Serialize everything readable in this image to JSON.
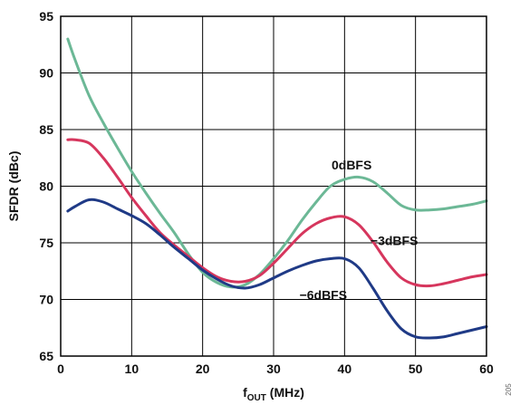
{
  "chart_data": {
    "type": "line",
    "xlabel_main": "f",
    "xlabel_sub": "OUT",
    "xlabel_unit": " (MHz)",
    "ylabel": "SFDR (dBc)",
    "xlim": [
      0,
      60
    ],
    "ylim": [
      65,
      95
    ],
    "xticks": [
      0,
      10,
      20,
      30,
      40,
      50,
      60
    ],
    "yticks": [
      65,
      70,
      75,
      80,
      85,
      90,
      95
    ],
    "grid": true,
    "side_code": "205",
    "series": [
      {
        "name": "0dBFS",
        "color": "#6cb896",
        "x": [
          1,
          2,
          4,
          6,
          8,
          10,
          12,
          14,
          16,
          18,
          20,
          22,
          24,
          26,
          28,
          30,
          32,
          34,
          36,
          38,
          40,
          42,
          44,
          46,
          48,
          50,
          52,
          54,
          56,
          58,
          60
        ],
        "y": [
          93.0,
          91.2,
          88.0,
          85.6,
          83.4,
          81.3,
          79.4,
          77.6,
          75.9,
          74.0,
          72.4,
          71.5,
          71.1,
          71.3,
          72.2,
          73.6,
          75.2,
          77.0,
          78.6,
          80.0,
          80.6,
          80.8,
          80.4,
          79.4,
          78.3,
          77.9,
          77.9,
          78.0,
          78.2,
          78.4,
          78.7
        ]
      },
      {
        "name": "−3dBFS",
        "color": "#d6365d",
        "x": [
          1,
          2,
          4,
          6,
          8,
          10,
          12,
          14,
          16,
          18,
          20,
          22,
          24,
          26,
          28,
          30,
          32,
          34,
          36,
          38,
          40,
          42,
          44,
          46,
          48,
          50,
          52,
          54,
          56,
          58,
          60
        ],
        "y": [
          84.1,
          84.1,
          83.8,
          82.5,
          80.8,
          79.0,
          77.4,
          75.9,
          74.8,
          73.8,
          72.8,
          72.0,
          71.6,
          71.6,
          72.1,
          73.2,
          74.5,
          75.8,
          76.7,
          77.2,
          77.3,
          76.6,
          75.1,
          73.3,
          71.9,
          71.3,
          71.2,
          71.4,
          71.7,
          72.0,
          72.2
        ]
      },
      {
        "name": "−6dBFS",
        "color": "#1f3a86",
        "x": [
          1,
          2,
          4,
          6,
          8,
          10,
          12,
          14,
          16,
          18,
          20,
          22,
          24,
          26,
          28,
          30,
          32,
          34,
          36,
          38,
          40,
          42,
          44,
          46,
          48,
          50,
          52,
          54,
          56,
          58,
          60
        ],
        "y": [
          77.8,
          78.2,
          78.8,
          78.6,
          78.0,
          77.4,
          76.7,
          75.7,
          74.6,
          73.6,
          72.6,
          71.8,
          71.2,
          71.0,
          71.3,
          71.9,
          72.5,
          73.0,
          73.4,
          73.6,
          73.6,
          72.8,
          71.0,
          69.0,
          67.4,
          66.7,
          66.6,
          66.7,
          67.0,
          67.3,
          67.6
        ]
      }
    ],
    "annotations": [
      {
        "text": "0dBFS",
        "series": 0,
        "at_x": 41,
        "at_y": 81.5
      },
      {
        "text": "−3dBFS",
        "series": 1,
        "at_x": 47,
        "at_y": 74.8
      },
      {
        "text": "−6dBFS",
        "series": 2,
        "at_x": 37,
        "at_y": 70.0
      }
    ]
  }
}
